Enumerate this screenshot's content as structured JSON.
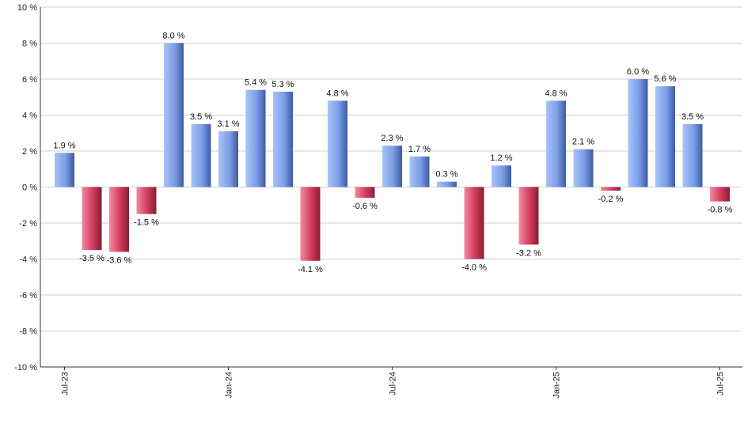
{
  "chart_data": {
    "type": "bar",
    "title": "",
    "xlabel": "",
    "ylabel": "",
    "ylim": [
      -10,
      10
    ],
    "yticks": [
      10,
      8,
      6,
      4,
      2,
      0,
      -2,
      -4,
      -6,
      -8,
      -10
    ],
    "ytick_labels": [
      "10 %",
      "8 %",
      "6 %",
      "4 %",
      "2 %",
      "0 %",
      "-2 %",
      "-4 %",
      "-6 %",
      "-8 %",
      "-10 %"
    ],
    "grid": true,
    "legend": "none",
    "categories": [
      "2023-07",
      "2023-08",
      "2023-09",
      "2023-10",
      "2023-11",
      "2023-12",
      "2024-01",
      "2024-02",
      "2024-03",
      "2024-04",
      "2024-05",
      "2024-06",
      "2024-07",
      "2024-08",
      "2024-09",
      "2024-10",
      "2024-11",
      "2024-12",
      "2025-01",
      "2025-02",
      "2025-03",
      "2025-04",
      "2025-05",
      "2025-06",
      "2025-07"
    ],
    "values": [
      1.9,
      -3.5,
      -3.6,
      -1.5,
      8.0,
      3.5,
      3.1,
      5.4,
      5.3,
      -4.1,
      4.8,
      -0.6,
      2.3,
      1.7,
      0.3,
      -4.0,
      1.2,
      -3.2,
      4.8,
      2.1,
      -0.2,
      6.0,
      5.6,
      3.5,
      -0.8
    ],
    "data_labels": [
      "1.9 %",
      "-3.5 %",
      "-3.6 %",
      "-1.5 %",
      "8.0 %",
      "3.5 %",
      "3.1 %",
      "5.4 %",
      "5.3 %",
      "-4.1 %",
      "4.8 %",
      "-0.6 %",
      "2.3 %",
      "1.7 %",
      "0.3 %",
      "-4.0 %",
      "1.2 %",
      "-3.2 %",
      "4.8 %",
      "2.1 %",
      "-0.2 %",
      "6.0 %",
      "5.6 %",
      "3.5 %",
      "-0.8 %"
    ],
    "x_tick_labels": [
      {
        "index": 0,
        "label": "Jul-23"
      },
      {
        "index": 6,
        "label": "Jan-24"
      },
      {
        "index": 12,
        "label": "Jul-24"
      },
      {
        "index": 18,
        "label": "Jan-25"
      },
      {
        "index": 24,
        "label": "Jul-25"
      }
    ],
    "colors": {
      "positive": "#7b9ee8",
      "negative": "#d23c5c",
      "grid": "#cfcfcf",
      "axis": "#333333"
    }
  }
}
